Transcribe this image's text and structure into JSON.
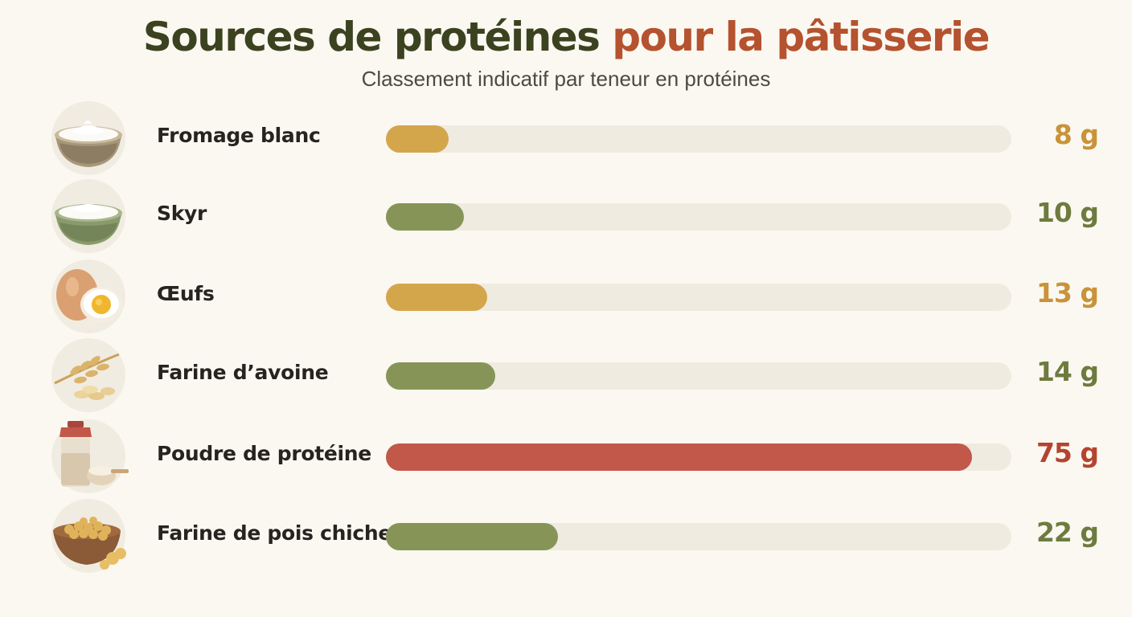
{
  "header": {
    "title_part1": "Sources de protéines",
    "title_part2": "pour la pâtisserie",
    "subtitle": "Classement indicatif par teneur en protéines"
  },
  "colors": {
    "amber": "#d4a64c",
    "olive": "#879458",
    "red": "#c2584a",
    "value_amber": "#c9933a",
    "value_olive": "#6e7b3f",
    "value_red": "#b5442f",
    "track": "#efebe1"
  },
  "chart_data": {
    "type": "bar",
    "orientation": "horizontal",
    "title": "Sources de protéines pour la pâtisserie",
    "subtitle": "Classement indicatif par teneur en protéines",
    "unit": "g",
    "xlim": [
      0,
      80
    ],
    "grid": false,
    "categories": [
      "Fromage blanc",
      "Skyr",
      "Œufs",
      "Farine d’avoine",
      "Poudre de protéine",
      "Farine de pois chiche"
    ],
    "values": [
      8,
      10,
      13,
      14,
      75,
      22
    ],
    "value_labels": [
      "8 g",
      "10 g",
      "13 g",
      "14 g",
      "75 g",
      "22 g"
    ],
    "bar_colors": [
      "amber",
      "olive",
      "amber",
      "olive",
      "red",
      "olive"
    ],
    "icons": [
      "fromage-blanc-bowl-icon",
      "skyr-bowl-icon",
      "eggs-icon",
      "oat-icon",
      "protein-powder-icon",
      "chickpea-bowl-icon"
    ]
  }
}
